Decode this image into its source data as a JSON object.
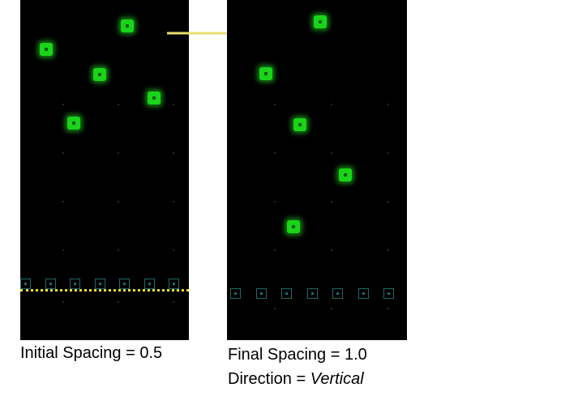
{
  "captions": {
    "left": "Initial Spacing = 0.5",
    "right_line1": "Final Spacing = 1.0",
    "right_line2_prefix": "Direction = ",
    "right_line2_value": "Vertical"
  },
  "colors": {
    "panel_background": "#000000",
    "green_square": "#19d419",
    "anchor_square_outline": "#1e6a6a",
    "guide_line": "#e6e22a",
    "arrow": "#e8e070"
  },
  "icons": {
    "arrow": "right-arrow-icon"
  }
}
